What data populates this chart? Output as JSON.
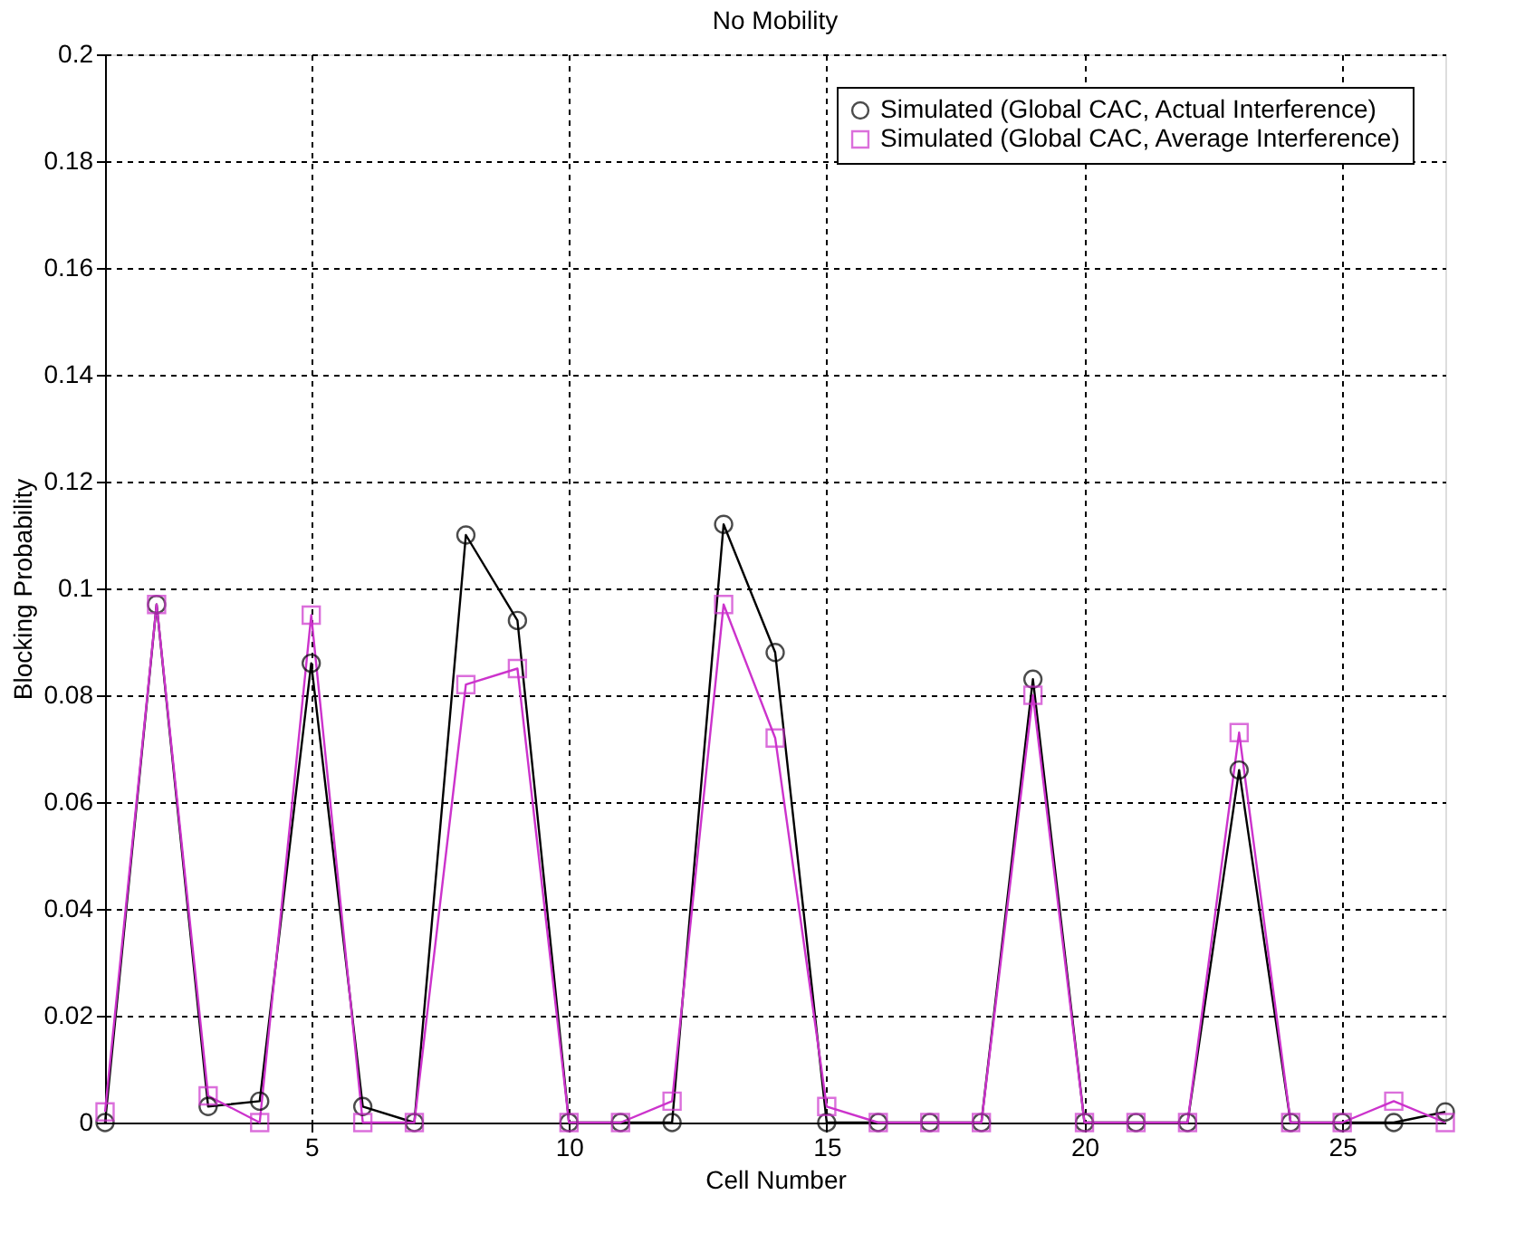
{
  "chart_data": {
    "type": "line",
    "title": "No Mobility",
    "xlabel": "Cell Number",
    "ylabel": "Blocking Probability",
    "x": [
      1,
      2,
      3,
      4,
      5,
      6,
      7,
      8,
      9,
      10,
      11,
      12,
      13,
      14,
      15,
      16,
      17,
      18,
      19,
      20,
      21,
      22,
      23,
      24,
      25,
      26,
      27
    ],
    "series": [
      {
        "name": "Simulated (Global CAC, Actual Interference)",
        "color": "#000000",
        "marker": "circle",
        "values": [
          0,
          0.097,
          0.003,
          0.004,
          0.086,
          0.003,
          0,
          0.11,
          0.094,
          0,
          0,
          0,
          0.112,
          0.088,
          0,
          0,
          0,
          0,
          0.083,
          0,
          0,
          0,
          0.066,
          0,
          0,
          0,
          0.002
        ]
      },
      {
        "name": "Simulated (Global CAC, Average Interference)",
        "color": "#cc33cc",
        "marker": "square",
        "values": [
          0.002,
          0.097,
          0.005,
          0,
          0.095,
          0,
          0,
          0.082,
          0.085,
          0,
          0,
          0.004,
          0.097,
          0.072,
          0.003,
          0,
          0,
          0,
          0.08,
          0,
          0,
          0,
          0.073,
          0,
          0,
          0.004,
          0
        ]
      }
    ],
    "xlim": [
      1,
      27
    ],
    "xticks": [
      5,
      10,
      15,
      20,
      25
    ],
    "ylim": [
      0,
      0.2
    ],
    "yticks": [
      0,
      0.02,
      0.04,
      0.06,
      0.08,
      0.1,
      0.12,
      0.14,
      0.16,
      0.18,
      0.2
    ],
    "grid": true,
    "legend": "top right",
    "line_style": "solid"
  }
}
